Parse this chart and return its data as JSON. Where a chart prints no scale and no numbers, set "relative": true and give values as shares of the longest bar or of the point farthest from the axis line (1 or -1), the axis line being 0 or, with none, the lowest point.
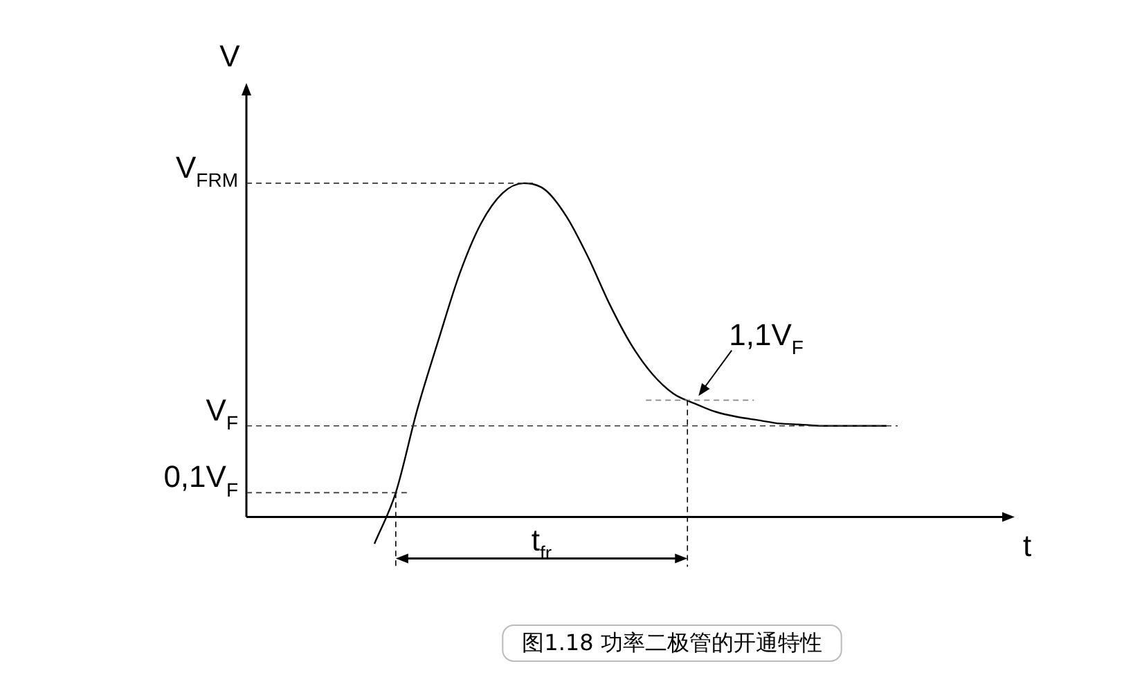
{
  "chart_data": {
    "type": "line",
    "relative": true,
    "xlabel": "t",
    "ylabel": "V",
    "categories": [
      null,
      null,
      null,
      null,
      null,
      null,
      null,
      null,
      null,
      null,
      null,
      null,
      null,
      null,
      null,
      null,
      null,
      null,
      null,
      null,
      null,
      null,
      null,
      null,
      null,
      null,
      null,
      null,
      null,
      null,
      null,
      null,
      null,
      null,
      null,
      null,
      null
    ],
    "series": [
      {
        "color": "#000000",
        "values": [
          null,
          null,
          null,
          null,
          null,
          null,
          -0.08,
          0.073,
          0.32,
          0.53,
          0.73,
          0.88,
          0.97,
          1.0,
          0.98,
          0.9,
          0.78,
          0.64,
          0.52,
          0.43,
          0.37,
          0.34,
          0.315,
          0.3,
          0.29,
          0.28,
          0.277,
          0.273,
          0.273,
          0.273,
          0.273,
          null,
          null,
          null,
          null,
          null,
          null
        ]
      }
    ],
    "ref_lines": [
      {
        "axis": "y",
        "value": 1.0,
        "label": "V$_{FRM}$",
        "line_style": "dashed"
      },
      {
        "axis": "y",
        "value": 0.273,
        "label": "V$_{F}$",
        "line_style": "dashed"
      },
      {
        "axis": "y",
        "value": 0.073,
        "label": "0,1V$_{F}$",
        "line_style": "dashed"
      },
      {
        "axis": "y",
        "value": 0.35,
        "label": "1,1V$_{F}$",
        "line_style": "dashed",
        "color": "#888888"
      }
    ],
    "annotations": [
      "t$_{fr}$",
      "图1.18 功率二极管的开通特性"
    ],
    "legend": false,
    "marker": "none",
    "line_style": "solid"
  }
}
